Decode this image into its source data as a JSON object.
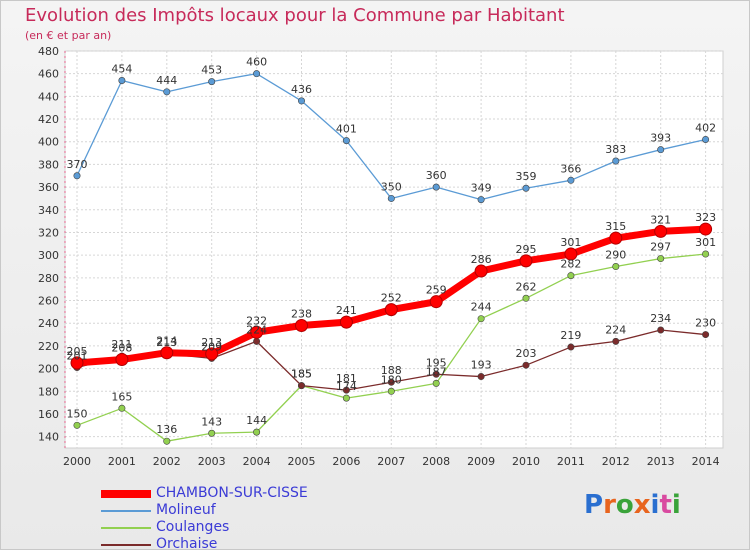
{
  "title": "Evolution des Impôts locaux pour la Commune par Habitant",
  "subtitle": "(en € et par an)",
  "logo": {
    "text": "Proxiti",
    "letter_colors": [
      "#2a6fd0",
      "#e8641e",
      "#3aa33a",
      "#e8641e",
      "#2a6fd0",
      "#d94aa0",
      "#3aa33a"
    ]
  },
  "chart_data": {
    "type": "line",
    "x": [
      "2000",
      "2001",
      "2002",
      "2003",
      "2004",
      "2005",
      "2006",
      "2007",
      "2008",
      "2009",
      "2010",
      "2011",
      "2012",
      "2013",
      "2014"
    ],
    "ylim": [
      130,
      480
    ],
    "yticks": [
      140,
      160,
      180,
      200,
      220,
      240,
      260,
      280,
      300,
      320,
      340,
      360,
      380,
      400,
      420,
      440,
      460,
      480
    ],
    "grid": true,
    "legend_position": "bottom-left",
    "series": [
      {
        "name": "CHAMBON-SUR-CISSE",
        "color": "#ff0000",
        "values": [
          205,
          208,
          214,
          213,
          232,
          238,
          241,
          252,
          259,
          286,
          295,
          301,
          315,
          321,
          323
        ]
      },
      {
        "name": "Molineuf",
        "color": "#5b9bd5",
        "values": [
          370,
          454,
          444,
          453,
          460,
          436,
          401,
          350,
          360,
          349,
          359,
          366,
          383,
          393,
          402
        ]
      },
      {
        "name": "Coulanges",
        "color": "#92d050",
        "values": [
          150,
          165,
          136,
          143,
          144,
          185,
          174,
          180,
          187,
          244,
          262,
          282,
          290,
          297,
          301
        ]
      },
      {
        "name": "Orchaise",
        "color": "#7b2b2b",
        "values": [
          201,
          211,
          213,
          209,
          224,
          185,
          181,
          188,
          195,
          193,
          203,
          219,
          224,
          234,
          230
        ]
      }
    ]
  }
}
